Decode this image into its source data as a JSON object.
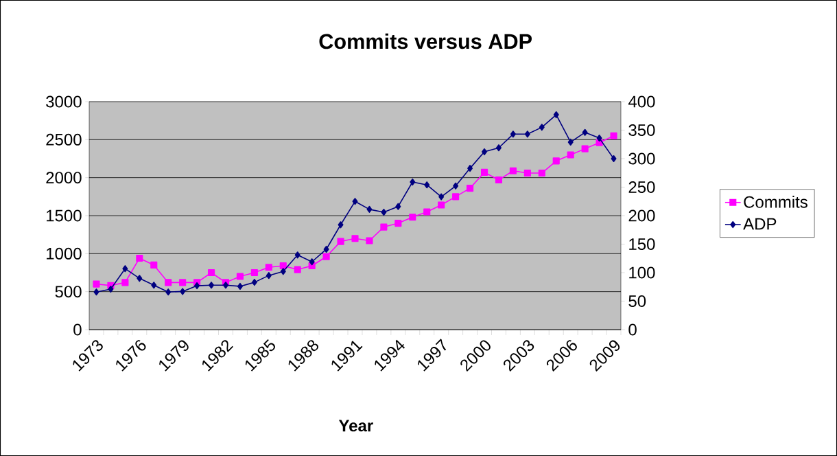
{
  "chart_data": {
    "type": "line",
    "title": "Commits versus ADP",
    "xlabel": "Year",
    "categories": [
      "1973",
      null,
      null,
      "1976",
      null,
      null,
      "1979",
      null,
      null,
      "1982",
      null,
      null,
      "1985",
      null,
      null,
      "1988",
      null,
      null,
      "1991",
      null,
      null,
      "1994",
      null,
      null,
      "1997",
      null,
      null,
      "2000",
      null,
      null,
      "2003",
      null,
      null,
      "2006",
      null,
      null,
      "2009"
    ],
    "series": [
      {
        "name": "Commits",
        "color": "#ff00ff",
        "marker": "square",
        "values": [
          600,
          580,
          620,
          940,
          850,
          620,
          620,
          620,
          750,
          620,
          700,
          750,
          820,
          840,
          790,
          840,
          960,
          1160,
          1200,
          1170,
          1350,
          1400,
          1480,
          1550,
          1640,
          1750,
          1860,
          2070,
          1970,
          2090,
          2060,
          2060,
          2220,
          2300,
          2380,
          2460,
          2550
        ]
      },
      {
        "name": "ADP",
        "color": "#000080",
        "marker": "diamond",
        "axis": "y2",
        "values": [
          66,
          71,
          107,
          90,
          78,
          66,
          67,
          77,
          78,
          78,
          76,
          83,
          95,
          102,
          131,
          119,
          141,
          184,
          225,
          211,
          206,
          216,
          259,
          254,
          233,
          252,
          283,
          312,
          319,
          343,
          343,
          355,
          377,
          329,
          346,
          336,
          300
        ]
      }
    ],
    "ylim": [
      0,
      3000
    ],
    "yticks": [
      0,
      500,
      1000,
      1500,
      2000,
      2500,
      3000
    ],
    "y2lim": [
      0,
      400
    ],
    "y2ticks": [
      0,
      50,
      100,
      150,
      200,
      250,
      300,
      350,
      400
    ],
    "grid": "y",
    "legend": "right"
  }
}
